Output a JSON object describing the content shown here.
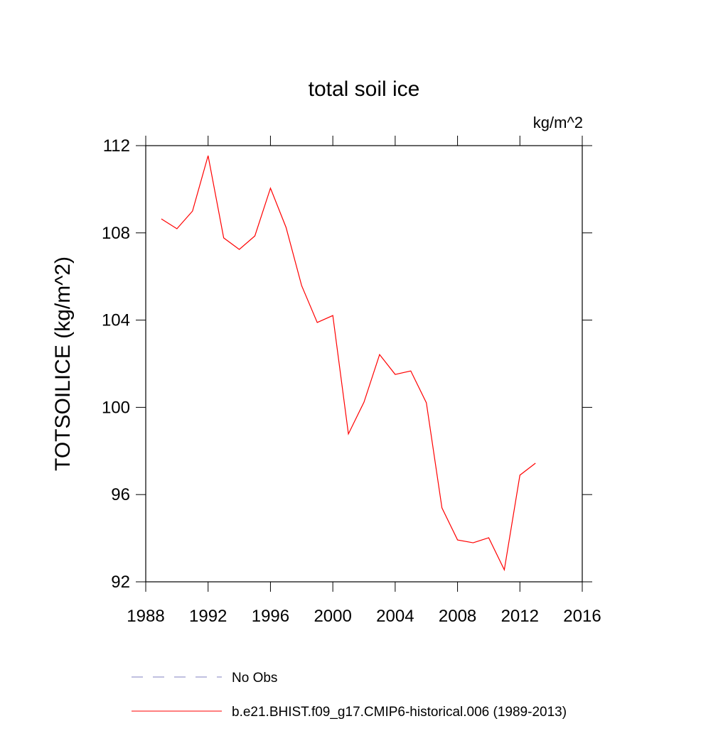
{
  "chart_data": {
    "type": "line",
    "title": "total soil ice",
    "units": "kg/m^2",
    "y_label": "TOTSOILICE  (kg/m^2)",
    "x": [
      1989,
      1990,
      1991,
      1992,
      1993,
      1994,
      1995,
      1996,
      1997,
      1998,
      1999,
      2000,
      2001,
      2002,
      2003,
      2004,
      2005,
      2006,
      2007,
      2008,
      2009,
      2010,
      2011,
      2012,
      2013
    ],
    "series": [
      {
        "name": "b.e21.BHIST.f09_g17.CMIP6-historical.006 (1989-2013)",
        "color": "#ff0000",
        "values": [
          108.64,
          108.19,
          109.0,
          111.54,
          107.77,
          107.24,
          107.86,
          110.05,
          108.25,
          105.58,
          103.89,
          104.21,
          98.78,
          100.24,
          102.42,
          101.51,
          101.67,
          100.21,
          95.39,
          93.92,
          93.79,
          94.02,
          92.55,
          96.89,
          97.44
        ]
      }
    ],
    "extra_legend": [
      {
        "name": "No Obs",
        "color": "#8080c0",
        "dashed": true
      }
    ],
    "xlim": [
      1988,
      2016
    ],
    "xticks": [
      1988,
      1992,
      1996,
      2000,
      2004,
      2008,
      2012,
      2016
    ],
    "ylim": [
      92,
      112
    ],
    "yticks": [
      92,
      96,
      100,
      104,
      108,
      112
    ]
  }
}
